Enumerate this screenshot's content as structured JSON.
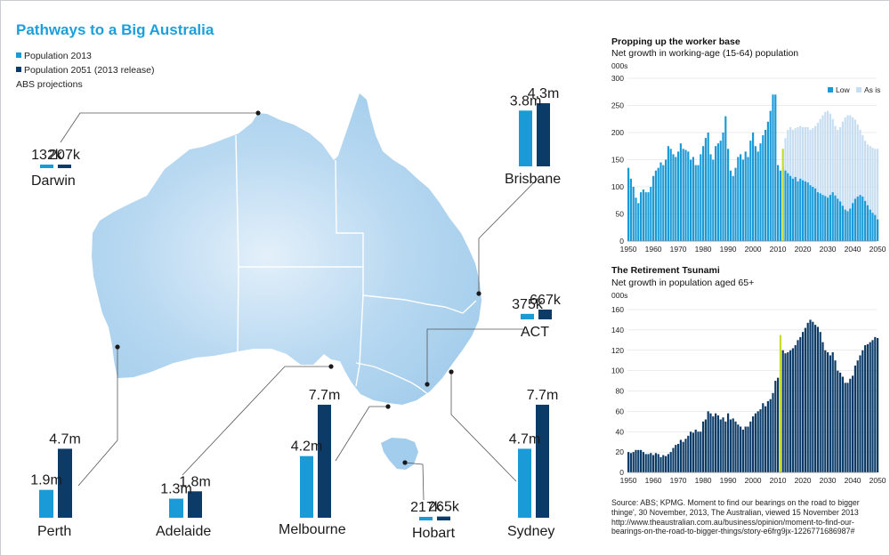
{
  "title": "Pathways to a Big Australia",
  "legend": [
    {
      "label": "Population 2013",
      "color": "#1a9bd7"
    },
    {
      "label": "Population 2051 (2013 release)",
      "color": "#0b3b66"
    }
  ],
  "note": "ABS projections",
  "map_chart_data": {
    "type": "bar",
    "series": [
      "Population 2013",
      "Population 2051 (2013 release)"
    ],
    "cities": [
      {
        "name": "Darwin",
        "v2013": 0.132,
        "v2051": 0.207,
        "l2013": "132k",
        "l2051": "207k"
      },
      {
        "name": "Brisbane",
        "v2013": 3.8,
        "v2051": 4.3,
        "l2013": "3.8m",
        "l2051": "4.3m"
      },
      {
        "name": "ACT",
        "v2013": 0.375,
        "v2051": 0.667,
        "l2013": "375k",
        "l2051": "667k"
      },
      {
        "name": "Perth",
        "v2013": 1.9,
        "v2051": 4.7,
        "l2013": "1.9m",
        "l2051": "4.7m"
      },
      {
        "name": "Adelaide",
        "v2013": 1.3,
        "v2051": 1.8,
        "l2013": "1.3m",
        "l2051": "1.8m"
      },
      {
        "name": "Melbourne",
        "v2013": 4.2,
        "v2051": 7.7,
        "l2013": "4.2m",
        "l2051": "7.7m"
      },
      {
        "name": "Hobart",
        "v2013": 0.217,
        "v2051": 0.265,
        "l2013": "217k",
        "l2051": "265k"
      },
      {
        "name": "Sydney",
        "v2013": 4.7,
        "v2051": 7.7,
        "l2013": "4.7m",
        "l2051": "7.7m"
      }
    ],
    "units": "millions"
  },
  "chart_data": [
    {
      "type": "bar",
      "title": "Propping up the worker base",
      "subtitle": "Net growth in working-age (15-64) population",
      "ylabel": "000s",
      "ylim": [
        0,
        300
      ],
      "yticks": [
        0,
        50,
        100,
        150,
        200,
        250,
        300
      ],
      "xlim": [
        1950,
        2050
      ],
      "xticks": [
        1950,
        1960,
        1970,
        1980,
        1990,
        2000,
        2010,
        2020,
        2030,
        2040,
        2050
      ],
      "marker_year": 2012,
      "marker_value": 170,
      "legend": [
        "Low",
        "As is"
      ],
      "colors": {
        "low": "#1a9bd7",
        "asis": "#c7def2",
        "marker": "#c8dc2a"
      },
      "series": [
        {
          "name": "Low",
          "x": [
            1950,
            1951,
            1952,
            1953,
            1954,
            1955,
            1956,
            1957,
            1958,
            1959,
            1960,
            1961,
            1962,
            1963,
            1964,
            1965,
            1966,
            1967,
            1968,
            1969,
            1970,
            1971,
            1972,
            1973,
            1974,
            1975,
            1976,
            1977,
            1978,
            1979,
            1980,
            1981,
            1982,
            1983,
            1984,
            1985,
            1986,
            1987,
            1988,
            1989,
            1990,
            1991,
            1992,
            1993,
            1994,
            1995,
            1996,
            1997,
            1998,
            1999,
            2000,
            2001,
            2002,
            2003,
            2004,
            2005,
            2006,
            2007,
            2008,
            2009,
            2010,
            2011,
            2012,
            2013,
            2014,
            2015,
            2016,
            2017,
            2018,
            2019,
            2020,
            2021,
            2022,
            2023,
            2024,
            2025,
            2026,
            2027,
            2028,
            2029,
            2030,
            2031,
            2032,
            2033,
            2034,
            2035,
            2036,
            2037,
            2038,
            2039,
            2040,
            2041,
            2042,
            2043,
            2044,
            2045,
            2046,
            2047,
            2048,
            2049,
            2050
          ],
          "values": [
            135,
            115,
            100,
            80,
            70,
            90,
            95,
            90,
            90,
            100,
            120,
            130,
            135,
            145,
            140,
            150,
            175,
            170,
            160,
            155,
            165,
            180,
            170,
            168,
            165,
            150,
            155,
            140,
            140,
            160,
            175,
            190,
            200,
            160,
            150,
            175,
            180,
            185,
            200,
            230,
            170,
            130,
            120,
            135,
            155,
            160,
            150,
            165,
            155,
            185,
            200,
            175,
            165,
            180,
            195,
            205,
            220,
            240,
            270,
            270,
            140,
            130,
            135,
            130,
            125,
            120,
            115,
            118,
            110,
            115,
            112,
            110,
            108,
            103,
            100,
            97,
            90,
            88,
            85,
            83,
            80,
            85,
            90,
            84,
            78,
            73,
            65,
            58,
            55,
            60,
            70,
            78,
            82,
            85,
            82,
            74,
            66,
            58,
            52,
            48,
            40
          ]
        },
        {
          "name": "As is",
          "x": [
            2012,
            2013,
            2014,
            2015,
            2016,
            2017,
            2018,
            2019,
            2020,
            2021,
            2022,
            2023,
            2024,
            2025,
            2026,
            2027,
            2028,
            2029,
            2030,
            2031,
            2032,
            2033,
            2034,
            2035,
            2036,
            2037,
            2038,
            2039,
            2040,
            2041,
            2042,
            2043,
            2044,
            2045,
            2046,
            2047,
            2048,
            2049,
            2050
          ],
          "values": [
            170,
            190,
            205,
            210,
            205,
            208,
            210,
            212,
            210,
            210,
            210,
            205,
            208,
            212,
            218,
            225,
            232,
            238,
            240,
            235,
            225,
            212,
            205,
            210,
            220,
            228,
            232,
            232,
            228,
            224,
            215,
            205,
            195,
            185,
            178,
            175,
            172,
            170,
            170
          ]
        }
      ]
    },
    {
      "type": "bar",
      "title": "The Retirement Tsunami",
      "subtitle": "Net growth in population aged 65+",
      "ylabel": "000s",
      "ylim": [
        0,
        160
      ],
      "yticks": [
        0,
        20,
        40,
        60,
        80,
        100,
        120,
        140,
        160
      ],
      "xlim": [
        1950,
        2050
      ],
      "xticks": [
        1950,
        1960,
        1970,
        1980,
        1990,
        2000,
        2010,
        2020,
        2030,
        2040,
        2050
      ],
      "marker_year": 2011,
      "marker_value": 135,
      "colors": {
        "bar": "#0b3b66",
        "marker": "#c8dc2a"
      },
      "series": [
        {
          "name": "Net growth 65+",
          "x": [
            1950,
            1951,
            1952,
            1953,
            1954,
            1955,
            1956,
            1957,
            1958,
            1959,
            1960,
            1961,
            1962,
            1963,
            1964,
            1965,
            1966,
            1967,
            1968,
            1969,
            1970,
            1971,
            1972,
            1973,
            1974,
            1975,
            1976,
            1977,
            1978,
            1979,
            1980,
            1981,
            1982,
            1983,
            1984,
            1985,
            1986,
            1987,
            1988,
            1989,
            1990,
            1991,
            1992,
            1993,
            1994,
            1995,
            1996,
            1997,
            1998,
            1999,
            2000,
            2001,
            2002,
            2003,
            2004,
            2005,
            2006,
            2007,
            2008,
            2009,
            2010,
            2012,
            2013,
            2014,
            2015,
            2016,
            2017,
            2018,
            2019,
            2020,
            2021,
            2022,
            2023,
            2024,
            2025,
            2026,
            2027,
            2028,
            2029,
            2030,
            2031,
            2032,
            2033,
            2034,
            2035,
            2036,
            2037,
            2038,
            2039,
            2040,
            2041,
            2042,
            2043,
            2044,
            2045,
            2046,
            2047,
            2048,
            2049,
            2050
          ],
          "values": [
            20,
            19,
            20,
            22,
            22,
            22,
            20,
            18,
            18,
            19,
            17,
            19,
            18,
            15,
            17,
            16,
            18,
            20,
            24,
            27,
            28,
            32,
            30,
            33,
            36,
            40,
            39,
            42,
            40,
            40,
            50,
            52,
            60,
            58,
            55,
            58,
            56,
            52,
            54,
            50,
            58,
            52,
            53,
            50,
            47,
            45,
            42,
            45,
            45,
            50,
            55,
            58,
            60,
            62,
            68,
            65,
            70,
            72,
            78,
            90,
            93,
            120,
            117,
            118,
            120,
            122,
            125,
            130,
            133,
            138,
            142,
            147,
            150,
            148,
            145,
            143,
            138,
            128,
            120,
            118,
            115,
            118,
            110,
            100,
            98,
            94,
            88,
            88,
            92,
            95,
            105,
            110,
            115,
            120,
            125,
            126,
            128,
            130,
            133,
            132
          ]
        }
      ]
    }
  ],
  "source": "Source: ABS; KPMG. Moment to find our bearings on the road to bigger thinge', 30 November, 2013, The Australian, viewed 15 November 2013 http://www.theaustralian.com.au/business/opinion/moment-to-find-our-bearings-on-the-road-to-bigger-things/story-e6frg9jx-1226771686987#"
}
